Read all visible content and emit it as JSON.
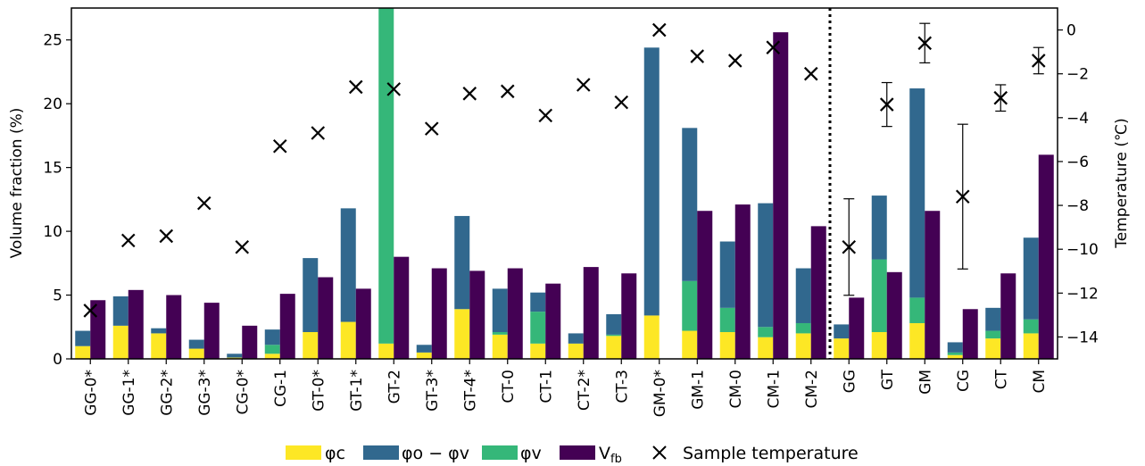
{
  "chart_data": {
    "type": "bar",
    "ylabel": "Volume fraction (%)",
    "y2label": "Temperature (℃)",
    "ylim": [
      0,
      27.5
    ],
    "y2lim": [
      -15,
      1
    ],
    "yticks": [
      0,
      5,
      10,
      15,
      20,
      25
    ],
    "y2ticks": [
      0,
      -2,
      -4,
      -6,
      -8,
      -10,
      -12,
      -14
    ],
    "grid": false,
    "legend_position": "bottom",
    "divider_after_index": 19,
    "colors": {
      "phi_c": "#fde725",
      "phi_ov": "#31688e",
      "phi_v": "#35b779",
      "vfb": "#440154",
      "temp": "#000000"
    },
    "categories": [
      "GG-0*",
      "GG-1*",
      "GG-2*",
      "GG-3*",
      "CG-0*",
      "CG-1",
      "GT-0*",
      "GT-1*",
      "GT-2",
      "GT-3*",
      "GT-4*",
      "CT-0",
      "CT-1",
      "CT-2*",
      "CT-3",
      "GM-0*",
      "GM-1",
      "CM-0",
      "CM-1",
      "CM-2",
      "GG",
      "GT",
      "GM",
      "CG",
      "CT",
      "CM"
    ],
    "series": [
      {
        "key": "phi_c",
        "values": [
          1.0,
          2.6,
          2.0,
          0.8,
          0.1,
          0.4,
          2.1,
          2.9,
          1.2,
          0.5,
          3.9,
          1.9,
          1.2,
          1.2,
          1.8,
          3.4,
          2.2,
          2.1,
          1.7,
          2.0,
          1.6,
          2.1,
          2.8,
          0.3,
          1.6,
          2.0
        ]
      },
      {
        "key": "phi_v",
        "values": [
          0.0,
          0.0,
          0.0,
          0.0,
          0.0,
          0.7,
          0.0,
          0.0,
          26.5,
          0.0,
          0.0,
          0.2,
          2.5,
          0.0,
          0.1,
          0.0,
          3.9,
          1.9,
          0.8,
          0.8,
          0.0,
          5.7,
          2.0,
          0.2,
          0.6,
          1.1
        ]
      },
      {
        "key": "phi_ov",
        "values": [
          1.2,
          2.3,
          0.4,
          0.7,
          0.3,
          1.2,
          5.8,
          8.9,
          0.0,
          0.6,
          7.3,
          3.4,
          1.5,
          0.8,
          1.6,
          21.0,
          12.0,
          5.2,
          9.7,
          4.3,
          1.1,
          5.0,
          16.4,
          0.8,
          1.8,
          6.4
        ]
      },
      {
        "key": "vfb",
        "values": [
          4.6,
          5.4,
          5.0,
          4.4,
          2.6,
          5.1,
          6.4,
          5.5,
          8.0,
          7.1,
          6.9,
          7.1,
          5.9,
          7.2,
          6.7,
          0.0,
          11.6,
          12.1,
          25.6,
          10.4,
          4.8,
          6.8,
          11.6,
          3.9,
          6.7,
          16.0
        ]
      }
    ],
    "temperature": [
      -12.8,
      -9.6,
      -9.4,
      -7.9,
      -9.9,
      -5.3,
      -4.7,
      -2.6,
      -2.7,
      -4.5,
      -2.9,
      -2.8,
      -3.9,
      -2.5,
      -3.3,
      0.0,
      -1.2,
      -1.4,
      -0.8,
      -2.0,
      -9.9,
      -3.4,
      -0.6,
      -7.6,
      -3.1,
      -1.4
    ],
    "temperature_err": [
      0,
      0,
      0,
      0,
      0,
      0,
      0,
      0,
      0,
      0,
      0,
      0,
      0,
      0,
      0,
      0,
      0,
      0,
      0,
      0,
      2.2,
      1.0,
      0.9,
      3.3,
      0.6,
      0.6
    ],
    "legend": {
      "phi_c": "φc",
      "phi_ov_a": "φo",
      "phi_ov_b": "φv",
      "phi_v": "φv",
      "vfb_main": "V",
      "vfb_sub": "fb",
      "temp": "Sample temperature"
    }
  }
}
